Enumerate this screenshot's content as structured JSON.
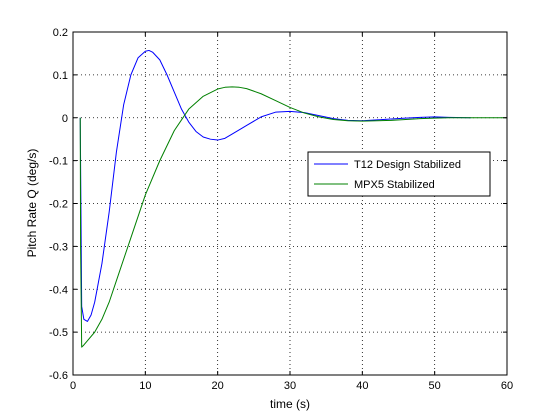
{
  "chart_data": {
    "type": "line",
    "title": "",
    "xlabel": "time (s)",
    "ylabel": "Pitch Rate Q (deg/s)",
    "xlim": [
      0,
      60
    ],
    "ylim": [
      -0.6,
      0.2
    ],
    "xticks": [
      0,
      10,
      20,
      30,
      40,
      50,
      60
    ],
    "yticks": [
      -0.6,
      -0.5,
      -0.4,
      -0.3,
      -0.2,
      -0.1,
      0,
      0.1,
      0.2
    ],
    "xtick_labels": [
      "0",
      "10",
      "20",
      "30",
      "40",
      "50",
      "60"
    ],
    "ytick_labels": [
      "-0.6",
      "-0.5",
      "-0.4",
      "-0.3",
      "-0.2",
      "-0.1",
      "0",
      "0.1",
      "0.2"
    ],
    "grid": true,
    "legend_position": "center-right",
    "series": [
      {
        "name": "T12 Design Stabilized",
        "color": "#0000ff",
        "x": [
          1,
          1.2,
          1.5,
          2,
          2.5,
          3,
          4,
          5,
          6,
          7,
          8,
          9,
          10,
          10.5,
          11,
          12,
          13,
          14,
          15,
          16,
          17,
          18,
          19,
          20,
          21,
          22,
          24,
          26,
          28,
          30,
          32,
          34,
          36,
          38,
          40,
          42,
          44,
          46,
          48,
          50,
          52,
          55
        ],
        "y": [
          0,
          -0.44,
          -0.47,
          -0.475,
          -0.46,
          -0.43,
          -0.34,
          -0.22,
          -0.08,
          0.03,
          0.1,
          0.14,
          0.155,
          0.157,
          0.153,
          0.135,
          0.1,
          0.06,
          0.02,
          -0.01,
          -0.032,
          -0.045,
          -0.05,
          -0.052,
          -0.048,
          -0.038,
          -0.018,
          0.002,
          0.013,
          0.015,
          0.012,
          0.005,
          -0.002,
          -0.006,
          -0.007,
          -0.005,
          -0.003,
          -0.001,
          0.001,
          0.002,
          0.001,
          0
        ]
      },
      {
        "name": "MPX5 Stabilized",
        "color": "#008000",
        "x": [
          1,
          1.05,
          1.2,
          1.5,
          2,
          3,
          4,
          5,
          6,
          8,
          10,
          12,
          14,
          16,
          18,
          20,
          21,
          22,
          23,
          24,
          26,
          28,
          30,
          32,
          34,
          36,
          38,
          40,
          42,
          44,
          46,
          48,
          50,
          52,
          55,
          60
        ],
        "y": [
          0,
          -0.3,
          -0.535,
          -0.53,
          -0.52,
          -0.5,
          -0.47,
          -0.43,
          -0.38,
          -0.28,
          -0.18,
          -0.1,
          -0.03,
          0.02,
          0.05,
          0.067,
          0.071,
          0.072,
          0.071,
          0.068,
          0.056,
          0.04,
          0.024,
          0.011,
          0.002,
          -0.004,
          -0.007,
          -0.008,
          -0.007,
          -0.006,
          -0.004,
          -0.002,
          -0.001,
          0,
          0,
          0
        ]
      }
    ]
  }
}
